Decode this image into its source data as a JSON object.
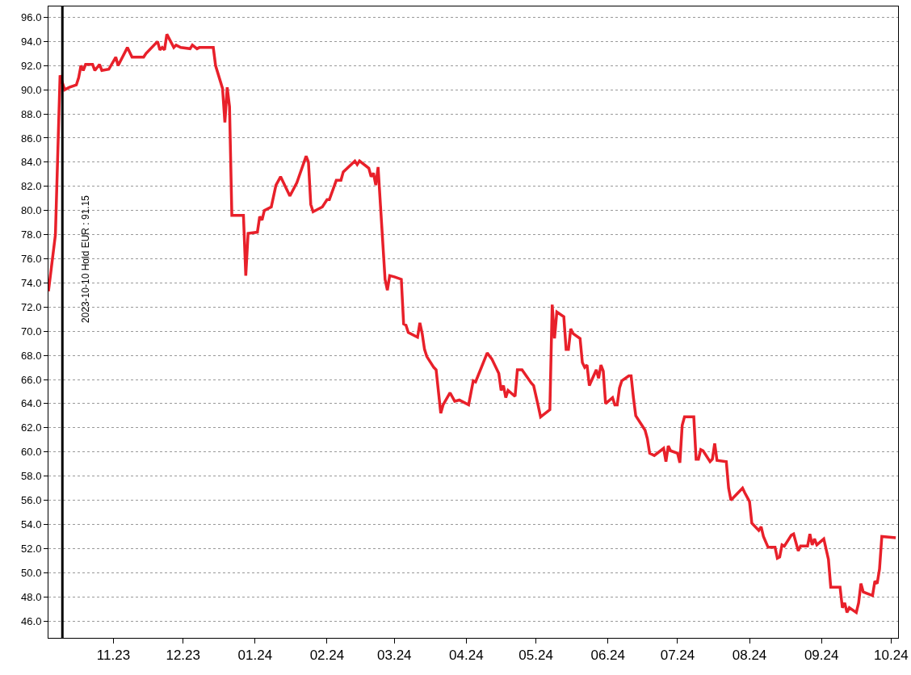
{
  "chart_data": {
    "type": "line",
    "grid": "y",
    "x": [
      "2023-10-04",
      "2023-10-07",
      "2023-10-09",
      "2023-10-11",
      "2023-10-13",
      "2023-10-16",
      "2023-10-17",
      "2023-10-18",
      "2023-10-19",
      "2023-10-20",
      "2023-10-23",
      "2023-10-24",
      "2023-10-26",
      "2023-10-27",
      "2023-10-30",
      "2023-11-02",
      "2023-11-03",
      "2023-11-07",
      "2023-11-09",
      "2023-11-14",
      "2023-11-15",
      "2023-11-20",
      "2023-11-21",
      "2023-11-22",
      "2023-11-23",
      "2023-11-24",
      "2023-11-27",
      "2023-11-28",
      "2023-11-30",
      "2023-12-04",
      "2023-12-05",
      "2023-12-07",
      "2023-12-08",
      "2023-12-14",
      "2023-12-15",
      "2023-12-18",
      "2023-12-19",
      "2023-12-20",
      "2023-12-21",
      "2023-12-22",
      "2023-12-27",
      "2023-12-28",
      "2023-12-29",
      "2024-01-02",
      "2024-01-03",
      "2024-01-04",
      "2024-01-05",
      "2024-01-08",
      "2024-01-10",
      "2024-01-12",
      "2024-01-16",
      "2024-01-19",
      "2024-01-23",
      "2024-01-24",
      "2024-01-25",
      "2024-01-26",
      "2024-01-30",
      "2024-02-01",
      "2024-02-02",
      "2024-02-05",
      "2024-02-07",
      "2024-02-08",
      "2024-02-13",
      "2024-02-14",
      "2024-02-15",
      "2024-02-19",
      "2024-02-20",
      "2024-02-21",
      "2024-02-22",
      "2024-02-23",
      "2024-02-26",
      "2024-02-27",
      "2024-02-28",
      "2024-03-01",
      "2024-03-04",
      "2024-03-05",
      "2024-03-06",
      "2024-03-07",
      "2024-03-11",
      "2024-03-12",
      "2024-03-13",
      "2024-03-14",
      "2024-03-15",
      "2024-03-18",
      "2024-03-19",
      "2024-03-21",
      "2024-03-22",
      "2024-03-25",
      "2024-03-27",
      "2024-03-29",
      "2024-04-02",
      "2024-04-04",
      "2024-04-05",
      "2024-04-10",
      "2024-04-12",
      "2024-04-15",
      "2024-04-16",
      "2024-04-17",
      "2024-04-18",
      "2024-04-19",
      "2024-04-22",
      "2024-04-23",
      "2024-04-25",
      "2024-04-29",
      "2024-04-30",
      "2024-05-02",
      "2024-05-03",
      "2024-05-07",
      "2024-05-08",
      "2024-05-09",
      "2024-05-10",
      "2024-05-13",
      "2024-05-14",
      "2024-05-15",
      "2024-05-16",
      "2024-05-17",
      "2024-05-20",
      "2024-05-21",
      "2024-05-22",
      "2024-05-23",
      "2024-05-24",
      "2024-05-27",
      "2024-05-28",
      "2024-05-29",
      "2024-05-30",
      "2024-05-31",
      "2024-06-03",
      "2024-06-04",
      "2024-06-05",
      "2024-06-06",
      "2024-06-07",
      "2024-06-10",
      "2024-06-11",
      "2024-06-12",
      "2024-06-13",
      "2024-06-17",
      "2024-06-18",
      "2024-06-19",
      "2024-06-21",
      "2024-06-25",
      "2024-06-26",
      "2024-06-27",
      "2024-06-28",
      "2024-07-01",
      "2024-07-02",
      "2024-07-03",
      "2024-07-04",
      "2024-07-08",
      "2024-07-09",
      "2024-07-10",
      "2024-07-11",
      "2024-07-12",
      "2024-07-15",
      "2024-07-16",
      "2024-07-17",
      "2024-07-18",
      "2024-07-22",
      "2024-07-23",
      "2024-07-24",
      "2024-07-26",
      "2024-07-29",
      "2024-07-30",
      "2024-08-01",
      "2024-08-02",
      "2024-08-05",
      "2024-08-06",
      "2024-08-07",
      "2024-08-09",
      "2024-08-12",
      "2024-08-13",
      "2024-08-14",
      "2024-08-15",
      "2024-08-16",
      "2024-08-19",
      "2024-08-20",
      "2024-08-22",
      "2024-08-23",
      "2024-08-26",
      "2024-08-27",
      "2024-08-28",
      "2024-08-29",
      "2024-08-30",
      "2024-09-02",
      "2024-09-04",
      "2024-09-05",
      "2024-09-09",
      "2024-09-10",
      "2024-09-11",
      "2024-09-12",
      "2024-09-13",
      "2024-09-16",
      "2024-09-17",
      "2024-09-18",
      "2024-09-19",
      "2024-09-23",
      "2024-09-24",
      "2024-09-25",
      "2024-09-26",
      "2024-09-27",
      "2024-10-03"
    ],
    "series": [
      {
        "color": "#e8202a",
        "values": [
          73.3,
          78.0,
          91.2,
          90.0,
          90.2,
          90.4,
          91.0,
          92.0,
          91.6,
          92.1,
          92.1,
          91.6,
          92.1,
          91.6,
          91.7,
          92.7,
          92.0,
          93.5,
          92.7,
          92.7,
          93.0,
          94.0,
          93.3,
          93.5,
          93.3,
          94.6,
          93.5,
          93.7,
          93.5,
          93.4,
          93.7,
          93.4,
          93.5,
          93.5,
          92.0,
          90.1,
          87.3,
          90.2,
          88.6,
          79.6,
          79.6,
          74.6,
          78.1,
          78.2,
          79.5,
          79.2,
          80.0,
          80.3,
          82.1,
          82.8,
          81.2,
          82.3,
          84.5,
          84.0,
          80.5,
          79.9,
          80.3,
          80.9,
          80.9,
          82.5,
          82.5,
          83.2,
          84.1,
          83.8,
          84.1,
          83.5,
          82.8,
          83.1,
          82.1,
          83.6,
          74.3,
          73.4,
          74.6,
          74.5,
          74.3,
          70.6,
          70.5,
          69.9,
          69.5,
          70.7,
          69.8,
          68.5,
          67.9,
          67.0,
          66.8,
          63.2,
          63.9,
          64.9,
          64.2,
          64.3,
          63.9,
          65.9,
          65.8,
          68.2,
          67.7,
          66.5,
          65.1,
          65.5,
          64.5,
          65.1,
          64.6,
          66.8,
          66.8,
          65.7,
          65.5,
          63.8,
          62.9,
          63.5,
          72.2,
          69.4,
          71.6,
          71.2,
          68.5,
          68.5,
          70.2,
          69.8,
          69.4,
          67.4,
          67.0,
          67.2,
          65.5,
          66.8,
          66.1,
          67.2,
          66.7,
          64.0,
          64.5,
          63.9,
          63.9,
          65.3,
          65.9,
          66.3,
          66.3,
          64.5,
          63.0,
          61.8,
          61.1,
          59.9,
          59.7,
          60.3,
          59.2,
          60.5,
          60.1,
          59.9,
          59.1,
          62.2,
          62.9,
          62.9,
          59.4,
          59.4,
          60.2,
          60.1,
          59.2,
          59.4,
          60.7,
          59.3,
          59.2,
          57.0,
          56.0,
          56.4,
          57.0,
          56.6,
          55.9,
          54.1,
          53.5,
          53.8,
          53.0,
          52.1,
          52.1,
          51.2,
          51.3,
          52.3,
          52.2,
          53.1,
          53.2,
          51.8,
          52.2,
          52.2,
          53.2,
          52.3,
          52.8,
          52.3,
          52.8,
          51.1,
          48.8,
          48.8,
          47.1,
          47.5,
          46.7,
          47.1,
          46.7,
          47.5,
          49.1,
          48.4,
          48.1,
          49.3,
          49.1,
          50.3,
          53.0,
          52.9
        ]
      }
    ],
    "xlim": [
      "2023-10-04",
      "2024-10-04"
    ],
    "xticks": [
      {
        "value": "2023-11-01",
        "label": "11.23"
      },
      {
        "value": "2023-12-01",
        "label": "12.23"
      },
      {
        "value": "2024-01-01",
        "label": "01.24"
      },
      {
        "value": "2024-02-01",
        "label": "02.24"
      },
      {
        "value": "2024-03-01",
        "label": "03.24"
      },
      {
        "value": "2024-04-01",
        "label": "04.24"
      },
      {
        "value": "2024-05-01",
        "label": "05.24"
      },
      {
        "value": "2024-06-01",
        "label": "06.24"
      },
      {
        "value": "2024-07-01",
        "label": "07.24"
      },
      {
        "value": "2024-08-01",
        "label": "08.24"
      },
      {
        "value": "2024-09-01",
        "label": "09.24"
      },
      {
        "value": "2024-10-01",
        "label": "10.24"
      }
    ],
    "ylim": [
      44.6,
      96.9
    ],
    "yticks": [
      {
        "value": 46,
        "label": "46.0"
      },
      {
        "value": 48,
        "label": "48.0"
      },
      {
        "value": 50,
        "label": "50.0"
      },
      {
        "value": 52,
        "label": "52.0"
      },
      {
        "value": 54,
        "label": "54.0"
      },
      {
        "value": 56,
        "label": "56.0"
      },
      {
        "value": 58,
        "label": "58.0"
      },
      {
        "value": 60,
        "label": "60.0"
      },
      {
        "value": 62,
        "label": "62.0"
      },
      {
        "value": 64,
        "label": "64.0"
      },
      {
        "value": 66,
        "label": "66.0"
      },
      {
        "value": 68,
        "label": "68.0"
      },
      {
        "value": 70,
        "label": "70.0"
      },
      {
        "value": 72,
        "label": "72.0"
      },
      {
        "value": 74,
        "label": "74.0"
      },
      {
        "value": 76,
        "label": "76.0"
      },
      {
        "value": 78,
        "label": "78.0"
      },
      {
        "value": 80,
        "label": "80.0"
      },
      {
        "value": 82,
        "label": "82.0"
      },
      {
        "value": 84,
        "label": "84.0"
      },
      {
        "value": 86,
        "label": "86.0"
      },
      {
        "value": 88,
        "label": "88.0"
      },
      {
        "value": 90,
        "label": "90.0"
      },
      {
        "value": 92,
        "label": "92.0"
      },
      {
        "value": 94,
        "label": "94.0"
      },
      {
        "value": 96,
        "label": "96.0"
      }
    ],
    "ref_lines": [
      {
        "axis": "x",
        "value": "2023-10-10",
        "label": "2023-10-10 Hold EUR : 91.15",
        "color": "#000000"
      }
    ]
  }
}
